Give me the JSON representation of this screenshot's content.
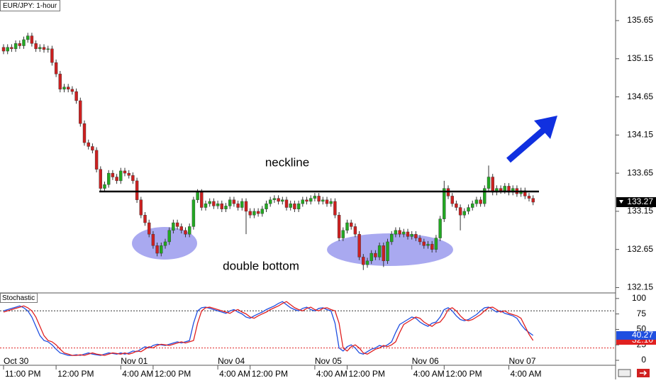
{
  "chart_data": [
    {
      "type": "candlestick",
      "title": "EUR/JPY: 1-hour",
      "open": [
        135.3,
        135.25,
        135.3,
        135.28,
        135.35,
        135.32,
        135.4,
        135.45,
        135.35,
        135.28,
        135.3,
        135.27,
        135.28,
        135.1,
        134.95,
        134.75,
        134.78,
        134.75,
        134.72,
        134.6,
        134.3,
        134.05,
        134.0,
        133.95,
        133.7,
        133.45,
        133.5,
        133.65,
        133.6,
        133.55,
        133.68,
        133.65,
        133.62,
        133.55,
        133.3,
        133.1,
        133.0,
        132.85,
        132.7,
        132.6,
        132.7,
        132.75,
        132.9,
        133.0,
        132.95,
        132.9,
        132.85,
        132.95,
        133.3,
        133.4,
        133.2,
        133.25,
        133.28,
        133.22,
        133.25,
        133.18,
        133.22,
        133.3,
        133.25,
        133.2,
        133.28,
        133.15,
        133.1,
        133.15,
        133.12,
        133.18,
        133.25,
        133.3,
        133.32,
        133.28,
        133.3,
        133.2,
        133.25,
        133.18,
        133.25,
        133.3,
        133.28,
        133.32,
        133.35,
        133.28,
        133.3,
        133.25,
        133.28,
        133.1,
        132.8,
        132.9,
        133.0,
        132.95,
        132.85,
        132.55,
        132.45,
        132.5,
        132.6,
        132.55,
        132.7,
        132.5,
        132.75,
        132.85,
        132.9,
        132.85,
        132.88,
        132.82,
        132.85,
        132.8,
        132.75,
        132.7,
        132.72,
        132.65,
        132.8,
        133.05,
        133.45,
        133.35,
        133.25,
        133.2,
        133.1,
        133.15,
        133.2,
        133.25,
        133.3,
        133.25,
        133.45,
        133.6,
        133.4,
        133.45,
        133.42,
        133.48,
        133.4,
        133.45,
        133.38,
        133.42,
        133.35,
        133.32
      ],
      "high": [
        135.34,
        135.34,
        135.34,
        135.39,
        135.39,
        135.44,
        135.49,
        135.49,
        135.39,
        135.34,
        135.34,
        135.32,
        135.32,
        135.14,
        134.99,
        134.82,
        134.82,
        134.79,
        134.76,
        134.64,
        134.34,
        134.09,
        134.04,
        133.99,
        133.74,
        133.54,
        133.69,
        133.69,
        133.64,
        133.72,
        133.72,
        133.69,
        133.66,
        133.59,
        133.34,
        133.14,
        133.04,
        132.89,
        132.74,
        132.74,
        132.79,
        132.94,
        133.04,
        133.04,
        132.99,
        132.94,
        132.99,
        133.34,
        133.44,
        133.44,
        133.29,
        133.32,
        133.32,
        133.29,
        133.29,
        133.26,
        133.34,
        133.34,
        133.29,
        133.32,
        133.32,
        133.19,
        133.19,
        133.19,
        133.22,
        133.29,
        133.34,
        133.36,
        133.36,
        133.34,
        133.34,
        133.29,
        133.29,
        133.29,
        133.34,
        133.34,
        133.36,
        133.39,
        133.39,
        133.34,
        133.34,
        133.32,
        133.32,
        133.14,
        132.94,
        133.04,
        133.04,
        132.99,
        132.89,
        132.59,
        132.54,
        132.64,
        132.64,
        132.74,
        132.74,
        132.79,
        132.89,
        132.94,
        132.94,
        132.92,
        132.92,
        132.89,
        132.89,
        132.84,
        132.79,
        132.76,
        132.76,
        132.84,
        133.09,
        133.55,
        133.49,
        133.39,
        133.29,
        133.24,
        133.19,
        133.24,
        133.29,
        133.34,
        133.34,
        133.49,
        133.75,
        133.64,
        133.49,
        133.49,
        133.52,
        133.52,
        133.49,
        133.49,
        133.46,
        133.46,
        133.39,
        133.36
      ],
      "low": [
        135.21,
        135.21,
        135.24,
        135.24,
        135.28,
        135.28,
        135.36,
        135.31,
        135.24,
        135.24,
        135.23,
        135.23,
        135.06,
        134.91,
        134.71,
        134.71,
        134.71,
        134.68,
        134.56,
        134.26,
        134.01,
        133.96,
        133.91,
        133.66,
        133.41,
        133.41,
        133.46,
        133.56,
        133.51,
        133.51,
        133.61,
        133.58,
        133.51,
        133.26,
        133.06,
        132.96,
        132.81,
        132.66,
        132.56,
        132.56,
        132.66,
        132.71,
        132.86,
        132.91,
        132.86,
        132.81,
        132.81,
        132.91,
        133.26,
        133.16,
        133.16,
        133.21,
        133.18,
        133.18,
        133.14,
        133.14,
        133.18,
        133.21,
        133.16,
        133.16,
        132.85,
        133.06,
        133.06,
        133.08,
        133.08,
        133.14,
        133.21,
        133.26,
        133.24,
        133.24,
        133.16,
        133.16,
        133.14,
        133.14,
        133.21,
        133.24,
        133.24,
        133.28,
        133.24,
        133.24,
        133.21,
        133.21,
        133.06,
        132.76,
        132.76,
        132.86,
        132.91,
        132.81,
        132.51,
        132.38,
        132.41,
        132.46,
        132.51,
        132.51,
        132.42,
        132.46,
        132.71,
        132.81,
        132.81,
        132.81,
        132.78,
        132.78,
        132.76,
        132.71,
        132.66,
        132.66,
        132.61,
        132.61,
        132.76,
        133.01,
        133.31,
        133.21,
        133.16,
        132.9,
        133.06,
        133.11,
        133.16,
        133.21,
        133.21,
        133.21,
        133.41,
        133.36,
        133.36,
        133.38,
        133.38,
        133.36,
        133.36,
        133.34,
        133.34,
        133.31,
        133.28,
        133.23
      ],
      "close": [
        135.25,
        135.3,
        135.28,
        135.35,
        135.32,
        135.4,
        135.45,
        135.35,
        135.28,
        135.3,
        135.27,
        135.28,
        135.1,
        134.95,
        134.75,
        134.78,
        134.75,
        134.72,
        134.6,
        134.3,
        134.05,
        134.0,
        133.95,
        133.7,
        133.45,
        133.5,
        133.65,
        133.6,
        133.55,
        133.68,
        133.65,
        133.62,
        133.55,
        133.3,
        133.1,
        133.0,
        132.85,
        132.7,
        132.6,
        132.7,
        132.75,
        132.9,
        133.0,
        132.95,
        132.9,
        132.85,
        132.95,
        133.3,
        133.4,
        133.2,
        133.25,
        133.28,
        133.22,
        133.25,
        133.18,
        133.22,
        133.3,
        133.25,
        133.2,
        133.28,
        133.15,
        133.1,
        133.15,
        133.12,
        133.18,
        133.25,
        133.3,
        133.32,
        133.28,
        133.3,
        133.2,
        133.25,
        133.18,
        133.25,
        133.3,
        133.28,
        133.32,
        133.35,
        133.28,
        133.3,
        133.25,
        133.28,
        133.1,
        132.8,
        132.9,
        133.0,
        132.95,
        132.85,
        132.55,
        132.45,
        132.5,
        132.6,
        132.55,
        132.7,
        132.5,
        132.75,
        132.85,
        132.9,
        132.85,
        132.88,
        132.82,
        132.85,
        132.8,
        132.75,
        132.7,
        132.72,
        132.65,
        132.8,
        133.05,
        133.45,
        133.35,
        133.25,
        133.2,
        133.1,
        133.15,
        133.2,
        133.25,
        133.3,
        133.25,
        133.45,
        133.6,
        133.4,
        133.45,
        133.42,
        133.48,
        133.4,
        133.45,
        133.38,
        133.42,
        133.35,
        133.32,
        133.27
      ],
      "up_color": "#22a822",
      "down_color": "#cc2020",
      "ylim": [
        132.08,
        135.92
      ],
      "yticks": [
        135.65,
        135.15,
        134.65,
        134.15,
        133.65,
        133.15,
        132.65,
        132.15
      ],
      "annotations": [
        "neckline",
        "double bottom"
      ]
    },
    {
      "type": "line",
      "title": "Stochastic",
      "categories": [
        "11:00 PM",
        null,
        null,
        null,
        null,
        null,
        null,
        null,
        null,
        null,
        null,
        null,
        null,
        "12:00 PM",
        null,
        null,
        null,
        null,
        null,
        null,
        null,
        null,
        null,
        null,
        null,
        null,
        null,
        null,
        null,
        "4:00 AM",
        null,
        null,
        null,
        null,
        null,
        null,
        null,
        "12:00 PM",
        null,
        null,
        null,
        null,
        null,
        null,
        null,
        null,
        null,
        null,
        null,
        null,
        null,
        null,
        null,
        "4:00 AM",
        null,
        null,
        null,
        null,
        null,
        null,
        null,
        "12:00 PM",
        null,
        null,
        null,
        null,
        null,
        null,
        null,
        null,
        null,
        null,
        null,
        null,
        null,
        null,
        null,
        "4:00 AM",
        null,
        null,
        null,
        null,
        null,
        null,
        null,
        "12:00 PM",
        null,
        null,
        null,
        null,
        null,
        null,
        null,
        null,
        null,
        null,
        null,
        null,
        null,
        null,
        null,
        "4:00 AM",
        null,
        null,
        null,
        null,
        null,
        null,
        null,
        "12:00 PM",
        null,
        null,
        null,
        null,
        null,
        null,
        null,
        null,
        null,
        null,
        null,
        null,
        null,
        null,
        null,
        "4:00 AM",
        null,
        null,
        null,
        null,
        null,
        null
      ],
      "dates": [
        "Oct 30",
        null,
        null,
        null,
        null,
        null,
        null,
        null,
        null,
        null,
        null,
        null,
        null,
        null,
        null,
        null,
        null,
        null,
        null,
        null,
        null,
        null,
        null,
        null,
        null,
        null,
        null,
        null,
        null,
        "Nov 01",
        null,
        null,
        null,
        null,
        null,
        null,
        null,
        null,
        null,
        null,
        null,
        null,
        null,
        null,
        null,
        null,
        null,
        null,
        null,
        null,
        null,
        null,
        null,
        "Nov 04",
        null,
        null,
        null,
        null,
        null,
        null,
        null,
        null,
        null,
        null,
        null,
        null,
        null,
        null,
        null,
        null,
        null,
        null,
        null,
        null,
        null,
        null,
        null,
        "Nov 05",
        null,
        null,
        null,
        null,
        null,
        null,
        null,
        null,
        null,
        null,
        null,
        null,
        null,
        null,
        null,
        null,
        null,
        null,
        null,
        null,
        null,
        null,
        null,
        "Nov 06",
        null,
        null,
        null,
        null,
        null,
        null,
        null,
        null,
        null,
        null,
        null,
        null,
        null,
        null,
        null,
        null,
        null,
        null,
        null,
        null,
        null,
        null,
        null,
        "Nov 07",
        null,
        null,
        null,
        null,
        null,
        null
      ],
      "series": [
        {
          "color": "#1f4fe0",
          "values": [
            80,
            82,
            84,
            86,
            88,
            85,
            80,
            70,
            55,
            40,
            32,
            30,
            25,
            18,
            12,
            10,
            8,
            8,
            9,
            8,
            10,
            12,
            10,
            9,
            8,
            10,
            12,
            11,
            10,
            12,
            10,
            12,
            15,
            14,
            18,
            22,
            20,
            24,
            26,
            25,
            24,
            26,
            28,
            30,
            28,
            30,
            32,
            60,
            80,
            85,
            86,
            84,
            82,
            80,
            78,
            76,
            80,
            82,
            78,
            75,
            70,
            68,
            72,
            75,
            78,
            82,
            85,
            88,
            92,
            95,
            90,
            85,
            82,
            80,
            84,
            86,
            82,
            80,
            84,
            85,
            82,
            80,
            60,
            20,
            15,
            22,
            25,
            20,
            12,
            10,
            14,
            18,
            20,
            24,
            22,
            25,
            30,
            45,
            58,
            62,
            66,
            70,
            68,
            62,
            58,
            55,
            60,
            62,
            70,
            82,
            85,
            80,
            72,
            66,
            64,
            66,
            70,
            74,
            80,
            85,
            86,
            82,
            78,
            80,
            76,
            74,
            72,
            68,
            58,
            50,
            45,
            40.27
          ],
          "tag": {
            "value": 40.27,
            "label": "40.27"
          }
        },
        {
          "color": "#e02020",
          "values": [
            78,
            80,
            82,
            84,
            86,
            88,
            85,
            80,
            70,
            55,
            40,
            32,
            30,
            25,
            18,
            12,
            10,
            8,
            8,
            9,
            8,
            10,
            12,
            10,
            9,
            8,
            10,
            12,
            11,
            10,
            12,
            10,
            12,
            15,
            14,
            18,
            22,
            20,
            24,
            26,
            25,
            24,
            26,
            28,
            30,
            28,
            30,
            32,
            60,
            80,
            85,
            86,
            84,
            82,
            80,
            78,
            76,
            80,
            82,
            78,
            75,
            70,
            68,
            72,
            75,
            78,
            82,
            85,
            88,
            92,
            95,
            90,
            85,
            82,
            80,
            84,
            86,
            82,
            80,
            84,
            85,
            82,
            80,
            60,
            20,
            15,
            22,
            25,
            20,
            12,
            10,
            14,
            18,
            20,
            24,
            22,
            25,
            30,
            45,
            58,
            62,
            66,
            70,
            68,
            62,
            58,
            55,
            60,
            62,
            70,
            82,
            85,
            80,
            72,
            66,
            64,
            66,
            70,
            74,
            80,
            85,
            86,
            82,
            78,
            80,
            76,
            74,
            72,
            68,
            55,
            42,
            32.1
          ],
          "tag": {
            "value": 32.1,
            "label": "32.10"
          }
        }
      ],
      "levels": [
        {
          "value": 80,
          "color": "#333333"
        },
        {
          "value": 20,
          "color": "#e02020"
        }
      ],
      "ylim": [
        -8,
        109
      ],
      "yticks": [
        100,
        75,
        50,
        25,
        0
      ]
    }
  ]
}
